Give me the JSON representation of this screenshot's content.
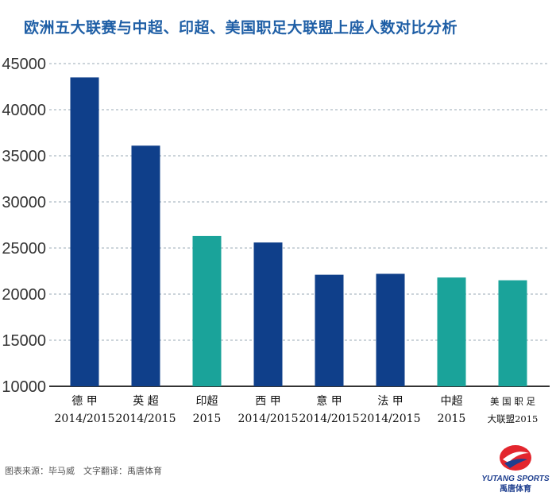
{
  "title": "欧洲五大联赛与中超、印超、美国职足大联盟上座人数对比分析",
  "source_note": "图表来源：毕马威　文字翻译：禹唐体育",
  "logo": {
    "text_top": "YUTANG SPORTS",
    "text_bottom": "禹唐体育",
    "colors": [
      "#e3262e",
      "#1f3f8f"
    ]
  },
  "colors": {
    "europe": "#0f3f8a",
    "other": "#1aa39a",
    "grid": "#9aa8b5",
    "axis": "#333333"
  },
  "chart_data": {
    "type": "bar",
    "title": "欧洲五大联赛与中超、印超、美国职足大联盟上座人数对比分析",
    "xlabel": "",
    "ylabel": "",
    "ylim": [
      10000,
      45000
    ],
    "yticks": [
      10000,
      15000,
      20000,
      25000,
      30000,
      35000,
      40000,
      45000
    ],
    "grid": true,
    "categories": [
      [
        "德 甲",
        "2014/2015"
      ],
      [
        "英 超",
        "2014/2015"
      ],
      [
        "印超",
        "2015"
      ],
      [
        "西 甲",
        "2014/2015"
      ],
      [
        "意 甲",
        "2014/2015"
      ],
      [
        "法 甲",
        "2014/2015"
      ],
      [
        "中超",
        "2015"
      ],
      [
        "美 国 职 足",
        "大联盟2015"
      ]
    ],
    "values": [
      43500,
      36100,
      26300,
      25600,
      22100,
      22200,
      21800,
      21500
    ],
    "bar_group": [
      "europe",
      "europe",
      "other",
      "europe",
      "europe",
      "europe",
      "other",
      "other"
    ]
  }
}
